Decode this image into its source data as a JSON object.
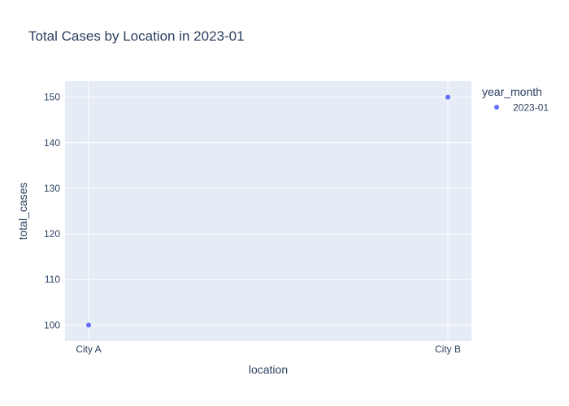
{
  "chart_data": {
    "type": "scatter",
    "title": "Total Cases by Location in 2023-01",
    "xlabel": "location",
    "ylabel": "total_cases",
    "categories": [
      "City A",
      "City B"
    ],
    "series": [
      {
        "name": "2023-01",
        "values": [
          100,
          150
        ],
        "color": "#636efa"
      }
    ],
    "ylim": [
      96.5,
      153.5
    ],
    "yticks": [
      100,
      110,
      120,
      130,
      140,
      150
    ],
    "grid": true,
    "plot_bg": "#e5ecf6",
    "legend": {
      "title": "year_month",
      "position": "top-right"
    }
  }
}
